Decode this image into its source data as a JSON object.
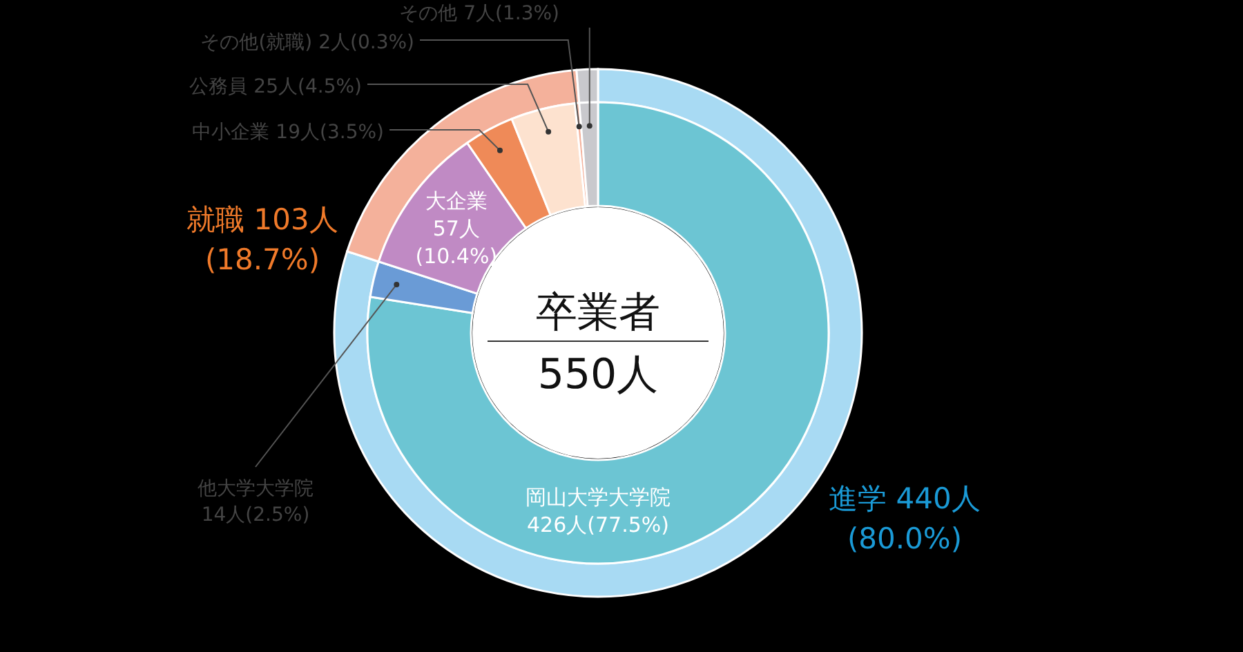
{
  "chart_data": [
    {
      "type": "donut",
      "categories": [
        "進学",
        "就職",
        null
      ],
      "values": [
        80.0,
        18.7,
        1.3
      ],
      "colors": [
        "#a8daf3",
        "#f4b19b",
        "#c9c9cd"
      ],
      "value_labels": [
        "440人(80.0%)",
        "103人(18.7%)",
        null
      ]
    },
    {
      "type": "donut",
      "title": "卒業者",
      "subtitle": "550人",
      "categories": [
        "岡山大学大学院",
        "他大学大学院",
        "大企業",
        "中小企業",
        "公務員",
        "その他(就職)",
        "その他"
      ],
      "values": [
        77.5,
        2.5,
        10.4,
        3.5,
        4.5,
        0.3,
        1.3
      ],
      "colors": [
        "#6cc5d3",
        "#6a9bd6",
        "#c08ac4",
        "#ef8a58",
        "#fde2cf",
        "#f4b19b",
        "#c9c9cd"
      ],
      "value_labels": [
        "426人(77.5%)",
        "14人(2.5%)",
        "57人(10.4%)",
        "19人(3.5%)",
        "25人(4.5%)",
        "2人(0.3%)",
        "7人(1.3%)"
      ]
    }
  ]
}
